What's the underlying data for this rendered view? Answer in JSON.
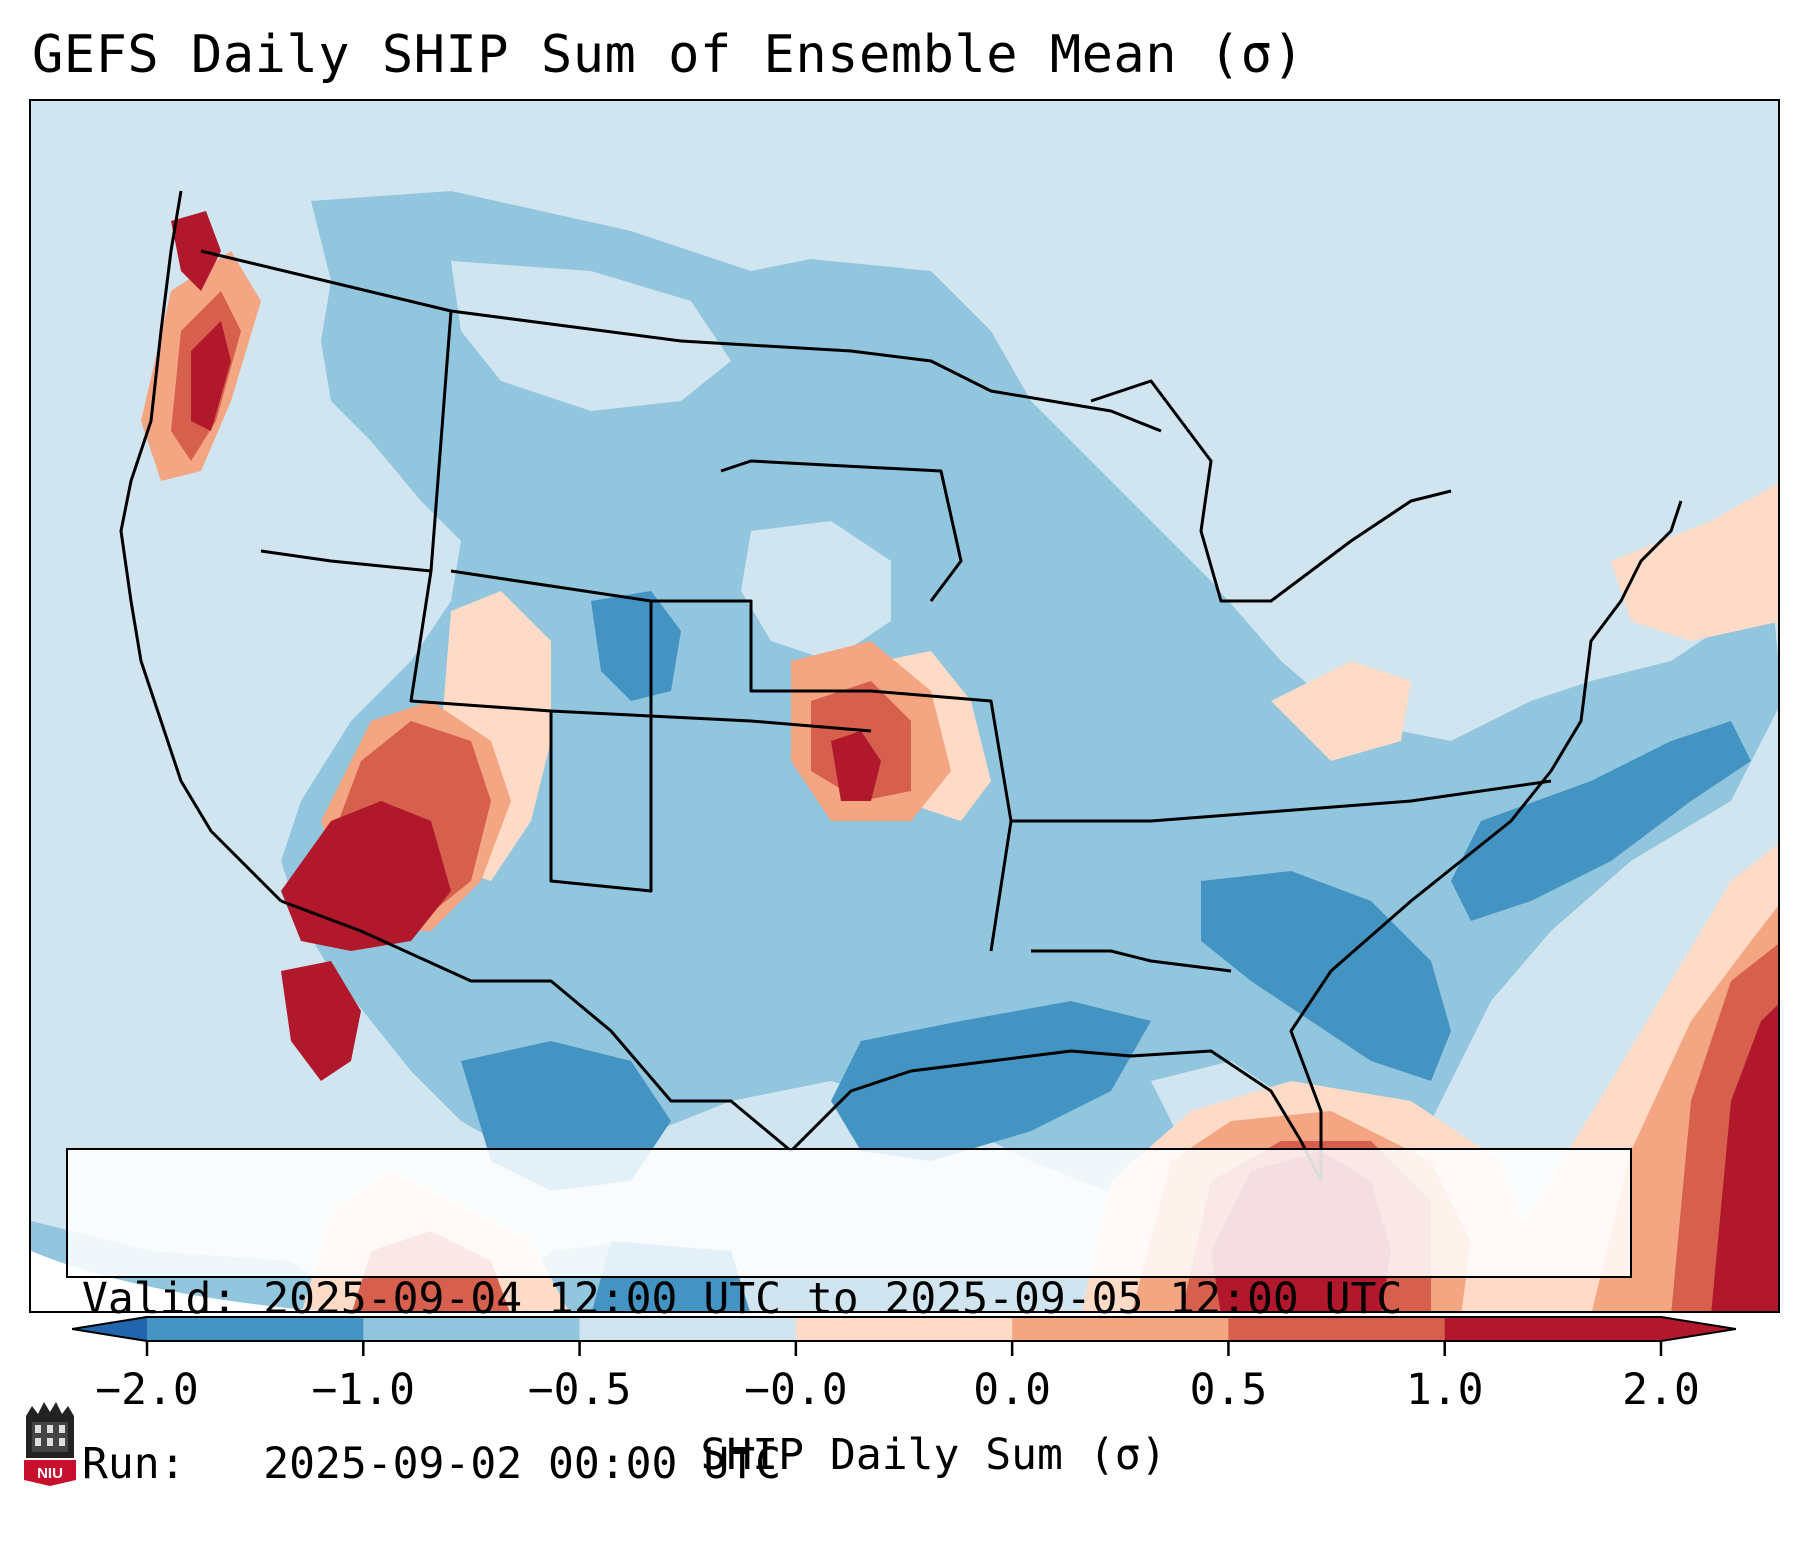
{
  "title": "GEFS Daily SHIP Sum of Ensemble Mean (σ)",
  "info": {
    "valid_line": "Valid: 2025-09-04 12:00 UTC to 2025-09-05 12:00 UTC",
    "run_line": "Run:   2025-09-02 00:00 UTC"
  },
  "colorbar": {
    "label": "SHIP Daily Sum (σ)",
    "ticks": [
      "−2.0",
      "−1.0",
      "−0.5",
      "−0.0",
      "0.0",
      "0.5",
      "1.0",
      "2.0"
    ],
    "colors": [
      "#4393c3",
      "#92c5de",
      "#d1e5f0",
      "#fddbc7",
      "#f4a582",
      "#d6604d",
      "#b2182b"
    ],
    "under_color": "#2166ac",
    "over_color": "#b2182b"
  },
  "map": {
    "background_color": "#d1e5f0",
    "outline_color": "#000000"
  },
  "logo": {
    "text": "NIU",
    "icon": "niu-university-shield-icon",
    "color": "#c8102e"
  }
}
